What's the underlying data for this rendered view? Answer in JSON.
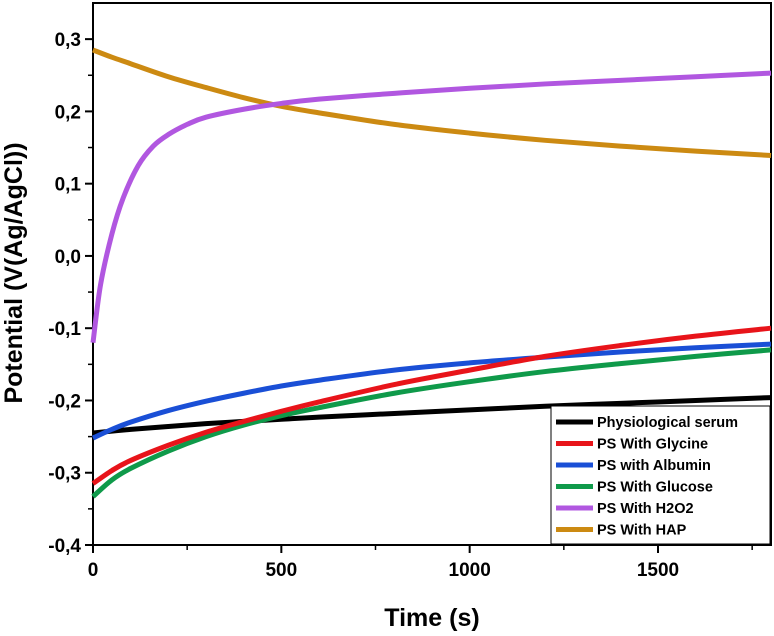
{
  "chart_data": {
    "type": "line",
    "title": "",
    "xlabel": "Time (s)",
    "ylabel": "Potential (V(Ag/AgCl))",
    "xlim": [
      0,
      1800
    ],
    "ylim": [
      -0.4,
      0.35
    ],
    "x_ticks": [
      0,
      500,
      1000,
      1500
    ],
    "x_tick_labels": [
      "0",
      "500",
      "1000",
      "1500"
    ],
    "y_ticks": [
      -0.4,
      -0.3,
      -0.2,
      -0.1,
      0.0,
      0.1,
      0.2,
      0.3
    ],
    "y_tick_labels": [
      "-0,4",
      "-0,3",
      "-0,2",
      "-0,1",
      "0,0",
      "0,1",
      "0,2",
      "0,3"
    ],
    "grid": false,
    "legend_position": "bottom-right",
    "series": [
      {
        "name": "Physiological serum",
        "color": "#000000",
        "x": [
          0,
          100,
          200,
          300,
          400,
          500,
          600,
          800,
          1000,
          1200,
          1400,
          1600,
          1800
        ],
        "y": [
          -0.245,
          -0.24,
          -0.236,
          -0.232,
          -0.229,
          -0.226,
          -0.223,
          -0.218,
          -0.213,
          -0.208,
          -0.204,
          -0.2,
          -0.196
        ]
      },
      {
        "name": "PS With Glycine",
        "color": "#e8141a",
        "x": [
          0,
          50,
          100,
          200,
          300,
          400,
          500,
          600,
          800,
          1000,
          1200,
          1400,
          1600,
          1800
        ],
        "y": [
          -0.315,
          -0.297,
          -0.283,
          -0.262,
          -0.244,
          -0.229,
          -0.215,
          -0.202,
          -0.178,
          -0.158,
          -0.139,
          -0.124,
          -0.111,
          -0.1
        ]
      },
      {
        "name": "PS with Albumin",
        "color": "#1a4fd6",
        "x": [
          0,
          50,
          100,
          200,
          300,
          400,
          500,
          600,
          800,
          1000,
          1200,
          1400,
          1600,
          1800
        ],
        "y": [
          -0.252,
          -0.24,
          -0.23,
          -0.214,
          -0.201,
          -0.19,
          -0.18,
          -0.172,
          -0.158,
          -0.148,
          -0.14,
          -0.133,
          -0.127,
          -0.122
        ]
      },
      {
        "name": "PS With Glucose",
        "color": "#0f9a4a",
        "x": [
          0,
          50,
          100,
          200,
          300,
          400,
          500,
          600,
          800,
          1000,
          1200,
          1400,
          1600,
          1800
        ],
        "y": [
          -0.333,
          -0.31,
          -0.294,
          -0.27,
          -0.25,
          -0.234,
          -0.221,
          -0.21,
          -0.19,
          -0.174,
          -0.16,
          -0.149,
          -0.139,
          -0.13
        ]
      },
      {
        "name": "PS With H2O2",
        "color": "#b157e0",
        "x": [
          0,
          20,
          50,
          80,
          120,
          160,
          200,
          250,
          300,
          400,
          500,
          600,
          800,
          1000,
          1200,
          1400,
          1600,
          1800
        ],
        "y": [
          -0.12,
          -0.04,
          0.03,
          0.08,
          0.125,
          0.152,
          0.168,
          0.182,
          0.192,
          0.203,
          0.211,
          0.217,
          0.225,
          0.232,
          0.238,
          0.243,
          0.248,
          0.253
        ]
      },
      {
        "name": "PS With HAP",
        "color": "#cc8a12",
        "x": [
          0,
          50,
          100,
          200,
          300,
          400,
          500,
          600,
          800,
          1000,
          1200,
          1400,
          1600,
          1800
        ],
        "y": [
          0.285,
          0.275,
          0.266,
          0.248,
          0.233,
          0.219,
          0.207,
          0.198,
          0.182,
          0.17,
          0.16,
          0.152,
          0.145,
          0.139
        ]
      }
    ]
  }
}
